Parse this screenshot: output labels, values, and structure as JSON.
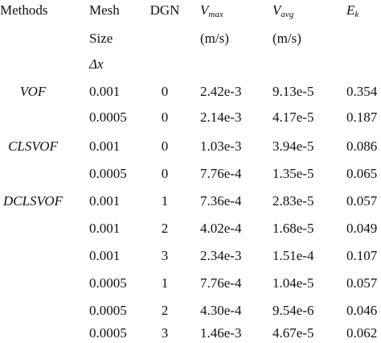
{
  "headers": {
    "methods": "Methods",
    "mesh": "Mesh",
    "size": "Size",
    "dx": "Δx",
    "dgn": "DGN",
    "vmax_sym": "V",
    "vmax_sub": "max",
    "vmax_unit": "(m/s)",
    "vavg_sym": "V",
    "vavg_sub": "avg",
    "vavg_unit": "(m/s)",
    "ek_sym": "E",
    "ek_sub": "k"
  },
  "rows": [
    {
      "method": "VOF",
      "mesh": "0.001",
      "dgn": "0",
      "vmax": "2.42e-3",
      "vavg": "9.13e-5",
      "ek": "0.354"
    },
    {
      "method": "",
      "mesh": "0.0005",
      "dgn": "0",
      "vmax": "2.14e-3",
      "vavg": "4.17e-5",
      "ek": "0.187"
    },
    {
      "method": "CLSVOF",
      "mesh": "0.001",
      "dgn": "0",
      "vmax": "1.03e-3",
      "vavg": "3.94e-5",
      "ek": "0.086"
    },
    {
      "method": "",
      "mesh": "0.0005",
      "dgn": "0",
      "vmax": "7.76e-4",
      "vavg": "1.35e-5",
      "ek": "0.065"
    },
    {
      "method": "DCLSVOF",
      "mesh": "0.001",
      "dgn": "1",
      "vmax": "7.36e-4",
      "vavg": "2.83e-5",
      "ek": "0.057"
    },
    {
      "method": "",
      "mesh": "0.001",
      "dgn": "2",
      "vmax": "4.02e-4",
      "vavg": "1.68e-5",
      "ek": "0.049"
    },
    {
      "method": "",
      "mesh": "0.001",
      "dgn": "3",
      "vmax": "2.34e-3",
      "vavg": "1.51e-4",
      "ek": "0.107"
    },
    {
      "method": "",
      "mesh": "0.0005",
      "dgn": "1",
      "vmax": "7.76e-4",
      "vavg": "1.04e-5",
      "ek": "0.057"
    },
    {
      "method": "",
      "mesh": "0.0005",
      "dgn": "2",
      "vmax": "4.30e-4",
      "vavg": "9.54e-6",
      "ek": "0.046"
    },
    {
      "method": "",
      "mesh": "0.0005",
      "dgn": "3",
      "vmax": "1.46e-3",
      "vavg": "4.67e-5",
      "ek": "0.062"
    }
  ]
}
